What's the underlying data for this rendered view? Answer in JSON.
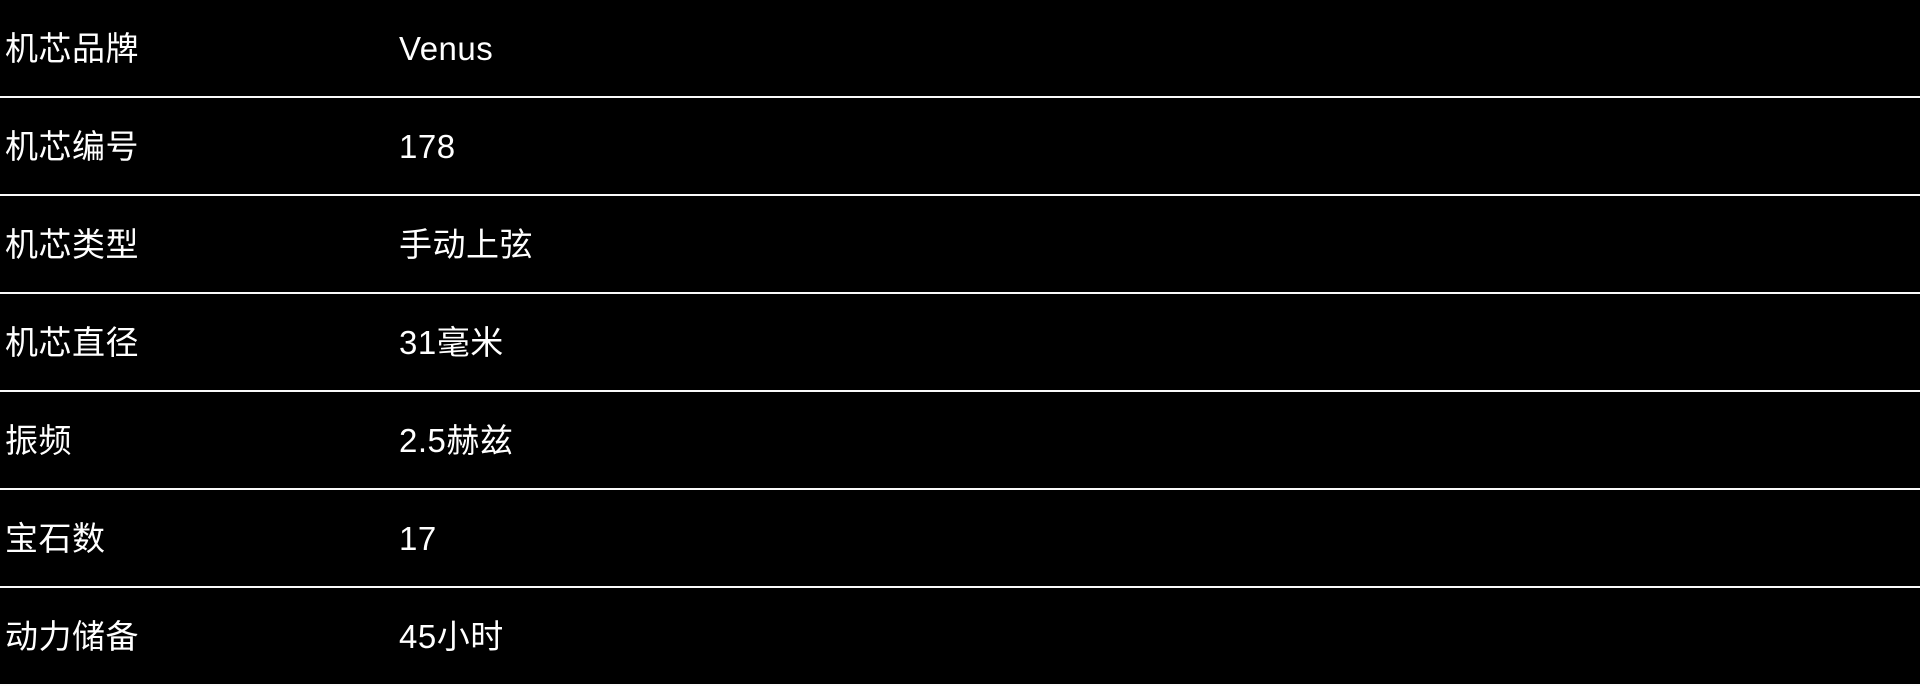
{
  "theme": {
    "background": "#000000",
    "text_color": "#ffffff",
    "divider_color": "#fafafa"
  },
  "spec_table": {
    "rows": [
      {
        "label": "机芯品牌",
        "value": "Venus"
      },
      {
        "label": "机芯编号",
        "value": "178"
      },
      {
        "label": "机芯类型",
        "value": "手动上弦"
      },
      {
        "label": "机芯直径",
        "value": "31毫米"
      },
      {
        "label": "振频",
        "value": "2.5赫兹"
      },
      {
        "label": "宝石数",
        "value": "17"
      },
      {
        "label": "动力储备",
        "value": "45小时"
      }
    ]
  }
}
